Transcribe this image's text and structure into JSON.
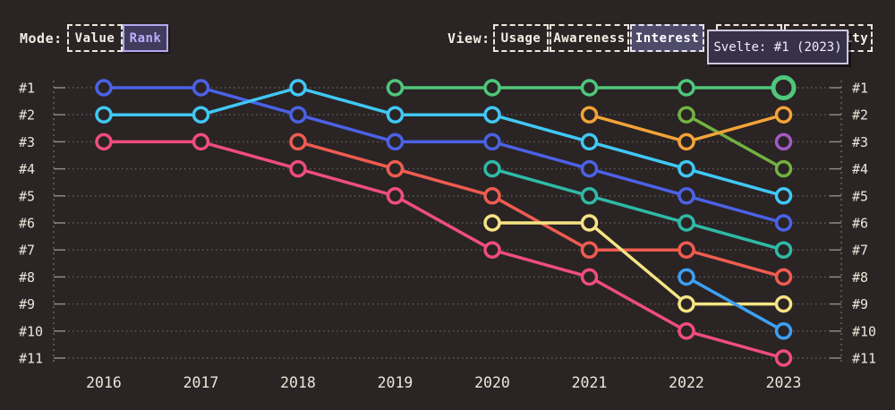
{
  "header": {
    "mode_label": "Mode:",
    "mode_options": [
      {
        "label": "Value",
        "active": false
      },
      {
        "label": "Rank",
        "active": true
      }
    ],
    "view_label": "View:",
    "view_options": [
      {
        "label": "Usage",
        "active": false
      },
      {
        "label": "Awareness",
        "active": false
      },
      {
        "label": "Interest",
        "active": true
      },
      {
        "label": "",
        "active": false
      },
      {
        "label": "Positivity",
        "active": false
      }
    ]
  },
  "tooltip": {
    "text": "Svelte: #1 (2023)"
  },
  "colors": {
    "background": "#2a2425",
    "axis_text": "#ece6d9",
    "grid": "#9b938b",
    "tooltip_bg": "#37324a",
    "accent_purple": "#bcadfa"
  },
  "chart_data": {
    "type": "line",
    "variant": "bump-rank-chart",
    "mode": "Rank",
    "view": "Interest",
    "x_labels": [
      "2016",
      "2017",
      "2018",
      "2019",
      "2020",
      "2021",
      "2022",
      "2023"
    ],
    "rank_labels": [
      "#1",
      "#2",
      "#3",
      "#4",
      "#5",
      "#6",
      "#7",
      "#8",
      "#9",
      "#10",
      "#11"
    ],
    "ylim": [
      1,
      11
    ],
    "grid": true,
    "highlighted_point": {
      "series": "Svelte",
      "rank": 1,
      "year": "2023",
      "label": "Svelte: #1 (2023)"
    },
    "series": [
      {
        "name": "blue",
        "color": "#4b62e6",
        "ranks": [
          1,
          1,
          2,
          3,
          3,
          4,
          5,
          6
        ]
      },
      {
        "name": "cyan",
        "color": "#40c8f4",
        "ranks": [
          2,
          2,
          1,
          2,
          2,
          3,
          4,
          5
        ]
      },
      {
        "name": "magenta",
        "color": "#f04d7f",
        "ranks": [
          3,
          3,
          4,
          5,
          7,
          8,
          10,
          11
        ]
      },
      {
        "name": "salmon",
        "color": "#f05c50",
        "ranks": [
          null,
          null,
          3,
          4,
          5,
          7,
          7,
          8
        ]
      },
      {
        "name": "yellow",
        "color": "#f6e483",
        "ranks": [
          null,
          null,
          null,
          null,
          6,
          6,
          9,
          9
        ]
      },
      {
        "name": "teal",
        "color": "#2fbaa6",
        "ranks": [
          null,
          null,
          null,
          null,
          4,
          5,
          6,
          7
        ]
      },
      {
        "name": "olive-green",
        "color": "#72b33f",
        "ranks": [
          null,
          null,
          null,
          null,
          null,
          null,
          2,
          4
        ]
      },
      {
        "name": "orange",
        "color": "#f2a437",
        "ranks": [
          null,
          null,
          null,
          null,
          null,
          2,
          3,
          2
        ]
      },
      {
        "name": "light-blue",
        "color": "#3da0f2",
        "ranks": [
          null,
          null,
          null,
          null,
          null,
          null,
          8,
          10
        ]
      },
      {
        "name": "purple",
        "color": "#a15cc4",
        "ranks": [
          null,
          null,
          null,
          null,
          null,
          null,
          null,
          3
        ]
      },
      {
        "name": "Svelte",
        "color": "#4fc77a",
        "ranks": [
          null,
          null,
          null,
          1,
          1,
          1,
          1,
          1
        ],
        "highlight_last": true
      }
    ]
  }
}
